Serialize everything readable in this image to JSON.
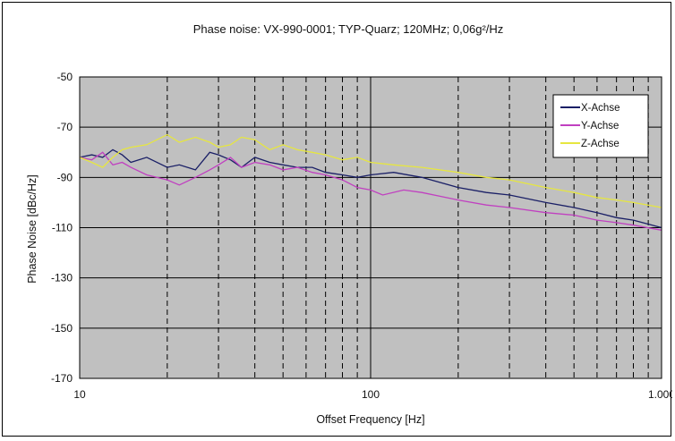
{
  "chart_data": {
    "type": "line",
    "title": "Phase noise: VX-990-0001; TYP-Quarz;   120MHz;   0,06g²/Hz",
    "xlabel": "Offset Frequency [Hz]",
    "ylabel": "Phase Noise [dBc/Hz]",
    "x_scale": "log",
    "xlim": [
      10,
      1000
    ],
    "ylim": [
      -170,
      -50
    ],
    "x_ticks": [
      10,
      100,
      1000
    ],
    "x_tick_labels": [
      "10",
      "100",
      "1.000"
    ],
    "y_ticks": [
      -50,
      -70,
      -90,
      -110,
      -130,
      -150,
      -170
    ],
    "grid": "major solid, minor dashed",
    "legend": "top-right",
    "series": [
      {
        "name": "X-Achse",
        "color": "#1a1f66",
        "x": [
          10,
          11,
          12,
          13,
          14,
          15,
          17,
          20,
          22,
          25,
          28,
          30,
          33,
          36,
          40,
          45,
          50,
          56,
          63,
          70,
          80,
          90,
          100,
          120,
          150,
          200,
          250,
          300,
          400,
          500,
          600,
          700,
          800,
          1000
        ],
        "y": [
          -82,
          -81,
          -82,
          -79,
          -81,
          -84,
          -82,
          -86,
          -85,
          -87,
          -80,
          -81,
          -83,
          -86,
          -82,
          -84,
          -85,
          -86,
          -86,
          -88,
          -89,
          -90,
          -89,
          -88,
          -90,
          -94,
          -96,
          -97,
          -100,
          -102,
          -104,
          -106,
          -107,
          -110
        ]
      },
      {
        "name": "Y-Achse",
        "color": "#c040c0",
        "x": [
          10,
          11,
          12,
          13,
          14,
          15,
          17,
          20,
          22,
          25,
          28,
          30,
          33,
          36,
          40,
          45,
          50,
          56,
          63,
          70,
          80,
          90,
          100,
          110,
          130,
          150,
          200,
          250,
          300,
          400,
          500,
          600,
          700,
          800,
          1000
        ],
        "y": [
          -82,
          -83,
          -80,
          -85,
          -84,
          -86,
          -89,
          -91,
          -93,
          -90,
          -87,
          -85,
          -82,
          -86,
          -84,
          -85,
          -87,
          -86,
          -88,
          -89,
          -91,
          -94,
          -95,
          -97,
          -95,
          -96,
          -99,
          -101,
          -102,
          -104,
          -105,
          -107,
          -108,
          -109,
          -111
        ]
      },
      {
        "name": "Z-Achse",
        "color": "#e6e640",
        "x": [
          10,
          11,
          12,
          13,
          14,
          15,
          17,
          20,
          22,
          25,
          28,
          30,
          33,
          36,
          40,
          45,
          50,
          56,
          63,
          70,
          80,
          90,
          100,
          120,
          150,
          200,
          250,
          300,
          400,
          500,
          600,
          700,
          800,
          1000
        ],
        "y": [
          -82,
          -84,
          -86,
          -82,
          -79,
          -78,
          -77,
          -73,
          -76,
          -74,
          -76,
          -78,
          -77,
          -74,
          -75,
          -79,
          -77,
          -79,
          -80,
          -81,
          -83,
          -82,
          -84,
          -85,
          -86,
          -88,
          -90,
          -91,
          -94,
          -96,
          -98,
          -99,
          -100,
          -102
        ]
      }
    ]
  }
}
